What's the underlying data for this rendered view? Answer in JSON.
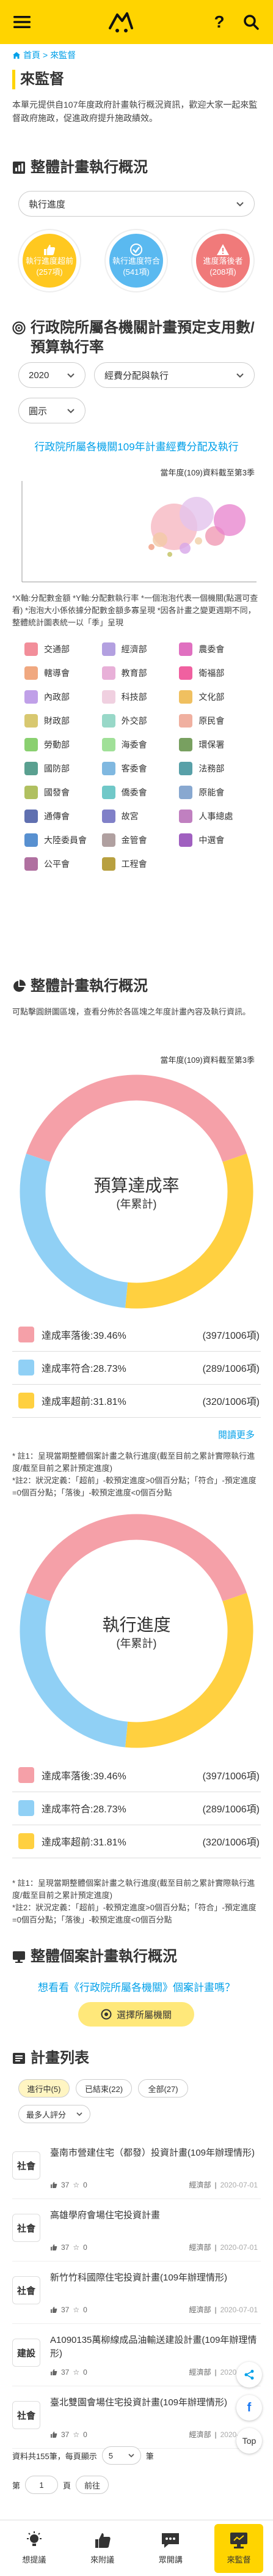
{
  "header": {
    "menu_icon": "menu-icon",
    "help": "?",
    "search_icon": "search-icon"
  },
  "breadcrumb": {
    "home": "首頁",
    "sep": ">",
    "current": "來監督"
  },
  "intro": {
    "title": "來監督",
    "text": "本單元提供自107年度政府計畫執行概況資訊，歡迎大家一起來監督政府施政，促進政府提升施政績效。"
  },
  "overview": {
    "title": "整體計畫執行概況",
    "select": "執行進度",
    "rings": [
      {
        "label": "執行進度超前",
        "count": "(257項)",
        "color": "#ffc820"
      },
      {
        "label": "執行進度符合",
        "count": "(541項)",
        "color": "#5ab9f0"
      },
      {
        "label": "進度落後者",
        "count": "(208項)",
        "color": "#f07a7a"
      }
    ]
  },
  "budget": {
    "title": "行政院所屬各機關計畫預定支用數/預算執行率",
    "year_select": "2020",
    "type_select": "經費分配與執行",
    "chart_select": "圓示",
    "link": "行政院所屬各機關109年計畫經費分配及執行",
    "caption": "當年度(109)資料截至第3季",
    "bubble_note": "*X軸:分配數金額 *Y軸:分配數執行率 *一個泡泡代表一個機關(點選可查看) *泡泡大小係依據分配數金額多寡呈現 *因各計畫之變更週期不同，整體統計圖表統一以「季」呈現",
    "legend": [
      {
        "name": "交通部",
        "color": "#f28e9a"
      },
      {
        "name": "經濟部",
        "color": "#b3a0e0"
      },
      {
        "name": "農委會",
        "color": "#e070c0"
      },
      {
        "name": "轄導會",
        "color": "#f0a880"
      },
      {
        "name": "教育部",
        "color": "#e8b0d8"
      },
      {
        "name": "衛福部",
        "color": "#f060a0"
      },
      {
        "name": "內政部",
        "color": "#c0a0e8"
      },
      {
        "name": "科技部",
        "color": "#f0d0e0"
      },
      {
        "name": "文化部",
        "color": "#f0c060"
      },
      {
        "name": "財政部",
        "color": "#d8c870"
      },
      {
        "name": "外交部",
        "color": "#98d8c8"
      },
      {
        "name": "原民會",
        "color": "#f0b0a0"
      },
      {
        "name": "勞動部",
        "color": "#8ad070"
      },
      {
        "name": "海委會",
        "color": "#a0e098"
      },
      {
        "name": "環保署",
        "color": "#78a060"
      },
      {
        "name": "國防部",
        "color": "#5aa090"
      },
      {
        "name": "客委會",
        "color": "#80b8e0"
      },
      {
        "name": "法務部",
        "color": "#58a0a8"
      },
      {
        "name": "國發會",
        "color": "#b0c060"
      },
      {
        "name": "僑委會",
        "color": "#70c8c8"
      },
      {
        "name": "原能會",
        "color": "#88a8d0"
      },
      {
        "name": "通傳會",
        "color": "#6070b0"
      },
      {
        "name": "故宮",
        "color": "#8080c8"
      },
      {
        "name": "人事總處",
        "color": "#c080c0"
      },
      {
        "name": "大陸委員會",
        "color": "#5890d0"
      },
      {
        "name": "金管會",
        "color": "#b0a0a0"
      },
      {
        "name": "中選會",
        "color": "#a060c0"
      },
      {
        "name": "公平會",
        "color": "#b070a0"
      },
      {
        "name": "工程會",
        "color": "#b8a040"
      }
    ]
  },
  "progress": {
    "title": "整體計畫執行概況",
    "desc": "可點擊圓餅圖區塊，查看分佈於各區塊之年度計畫內容及執行資訊。",
    "caption": "當年度(109)資料截至第3季",
    "donut1": {
      "label_main": "預算達成率",
      "label_sub": "(年累計)",
      "values": [
        39.46,
        28.73,
        31.81
      ],
      "colors": [
        "#f5a0a8",
        "#90d0f5",
        "#ffd040"
      ],
      "rows": [
        {
          "label": "達成率落後:39.46%",
          "value": "(397/1006項)"
        },
        {
          "label": "達成率符合:28.73%",
          "value": "(289/1006項)"
        },
        {
          "label": "達成率超前:31.81%",
          "value": "(320/1006項)"
        }
      ]
    },
    "more": "閱讀更多",
    "note1": "* 註1：呈現當期整體個案計畫之執行進度(截至目前之累計實際執行進度/截至目前之累計預定進度)\n*註2：狀況定義：「超前」-較預定進度>0個百分點；「符合」-預定進度=0個百分點；「落後」-較預定進度<0個百分點",
    "donut2": {
      "label_main": "執行進度",
      "label_sub": "(年累計)",
      "values": [
        39.46,
        28.73,
        31.81
      ],
      "colors": [
        "#f5a0a8",
        "#90d0f5",
        "#ffd040"
      ],
      "rows": [
        {
          "label": "達成率落後:39.46%",
          "value": "(397/1006項)"
        },
        {
          "label": "達成率符合:28.73%",
          "value": "(289/1006項)"
        },
        {
          "label": "達成率超前:31.81%",
          "value": "(320/1006項)"
        }
      ]
    },
    "note2": "* 註1：呈現當期整體個案計畫之執行進度(截至目前之累計實際執行進度/截至目前之累計預定進度)\n*註2：狀況定義：「超前」-較預定進度>0個百分點；「符合」-預定進度=0個百分點；「落後」-較預定進度<0個百分點"
  },
  "individual": {
    "title": "整體個案計畫執行概況",
    "link": "想看看《行政院所屬各機關》個案計畫嗎？",
    "button": "選擇所屬機關"
  },
  "plans": {
    "title": "計畫列表",
    "chips": [
      "進行中(5)",
      "已結束(22)",
      "全部(27)"
    ],
    "sort": "最多人評分",
    "items": [
      {
        "tag": "社會",
        "title": "臺南市營建住宅（都發）投資計畫(109年辦理情形)",
        "stars": "37",
        "comments": "0",
        "org": "經濟部",
        "date": "2020-07-01"
      },
      {
        "tag": "社會",
        "title": "高雄學府會場住宅投資計畫",
        "stars": "37",
        "comments": "0",
        "org": "經濟部",
        "date": "2020-07-01"
      },
      {
        "tag": "社會",
        "title": "新竹竹科國際住宅投資計畫(109年辦理情形)",
        "stars": "37",
        "comments": "0",
        "org": "經濟部",
        "date": "2020-07-01"
      },
      {
        "tag": "建設",
        "title": "A1090135萬柳線成品油輸送建設計畫(109年辦理情形)",
        "stars": "37",
        "comments": "0",
        "org": "經濟部",
        "date": "2020-07-01"
      },
      {
        "tag": "社會",
        "title": "臺北雙園會場住宅投資計畫(109年辦理情形)",
        "stars": "37",
        "comments": "0",
        "org": "經濟部",
        "date": "2020-07-01"
      }
    ],
    "total": "資料共155筆，每頁顯示",
    "per_page": "5",
    "unit": "筆",
    "page_prefix": "第",
    "page": "1",
    "page_suffix": "頁",
    "prev": "前往"
  },
  "floats": {
    "share": "share-icon",
    "fb": "f",
    "top": "Top"
  },
  "nav": [
    {
      "label": "想提議",
      "icon": "bulb-icon"
    },
    {
      "label": "來附議",
      "icon": "thumb-icon"
    },
    {
      "label": "眾開講",
      "icon": "chat-icon"
    },
    {
      "label": "來監督",
      "icon": "monitor-icon"
    }
  ]
}
